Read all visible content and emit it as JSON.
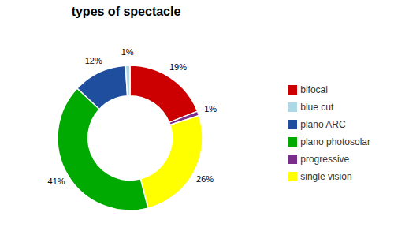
{
  "chart_data": {
    "type": "pie",
    "title": "types of spectacle",
    "categories": [
      "bifocal",
      "progressive",
      "single vision",
      "plano photosolar",
      "plano ARC",
      "blue cut"
    ],
    "values": [
      19,
      1,
      26,
      41,
      12,
      1
    ],
    "value_labels": [
      "19%",
      "1%",
      "26%",
      "41%",
      "12%",
      "1%"
    ],
    "data_labels": true,
    "colors": [
      "#cc0000",
      "#7b2d8b",
      "#ffff00",
      "#00aa00",
      "#1f4e9e",
      "#add8e6"
    ],
    "legend": "right"
  }
}
